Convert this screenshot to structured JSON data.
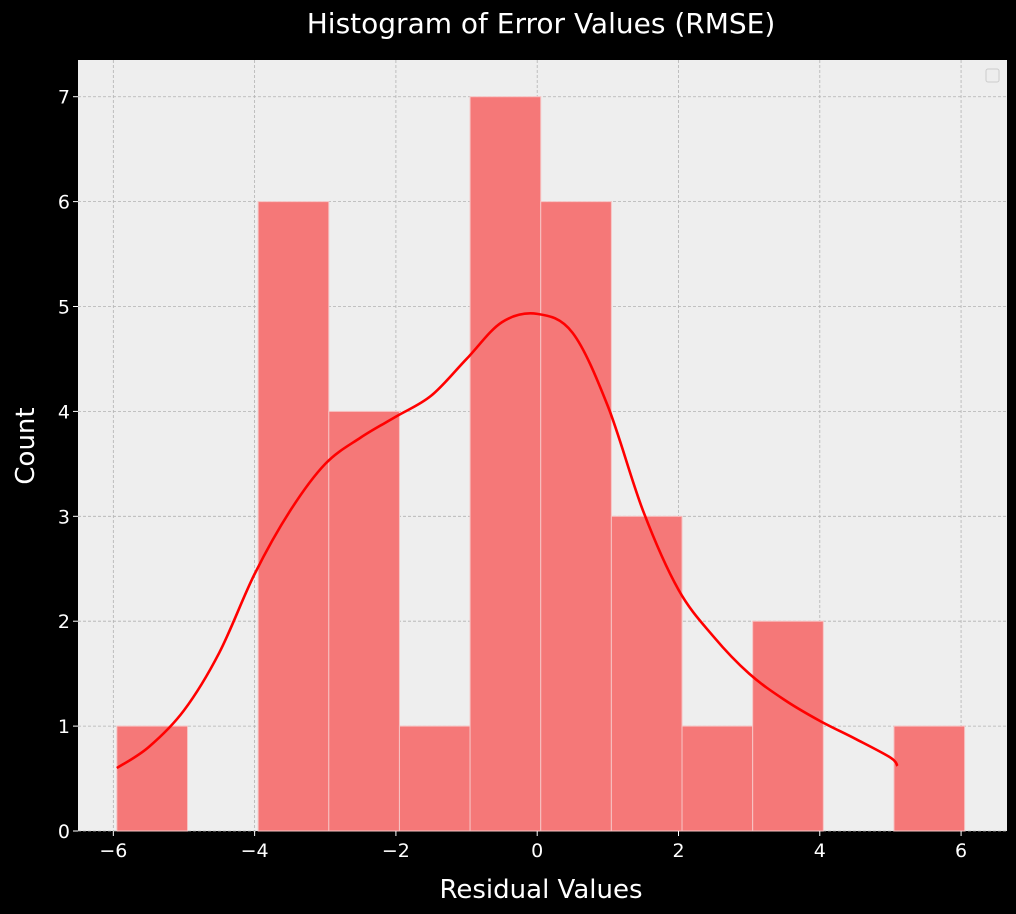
{
  "chart_data": {
    "type": "bar",
    "title": "Histogram of Error Values (RMSE)",
    "xlabel": "Residual Values",
    "ylabel": "Count",
    "xlim": [
      -6.5,
      6.65
    ],
    "ylim": [
      0,
      7.35
    ],
    "grid": true,
    "legend_placement": "top-right",
    "bins": [
      {
        "x0": -5.95,
        "x1": -4.95,
        "count": 1
      },
      {
        "x0": -4.95,
        "x1": -3.95,
        "count": 0
      },
      {
        "x0": -3.95,
        "x1": -2.95,
        "count": 6
      },
      {
        "x0": -2.95,
        "x1": -1.95,
        "count": 4
      },
      {
        "x0": -1.95,
        "x1": -0.95,
        "count": 1
      },
      {
        "x0": -0.95,
        "x1": 0.05,
        "count": 7
      },
      {
        "x0": 0.05,
        "x1": 1.05,
        "count": 6
      },
      {
        "x0": 1.05,
        "x1": 2.05,
        "count": 3
      },
      {
        "x0": 2.05,
        "x1": 3.05,
        "count": 1
      },
      {
        "x0": 3.05,
        "x1": 4.05,
        "count": 2
      },
      {
        "x0": 4.05,
        "x1": 5.05,
        "count": 0
      },
      {
        "x0": 5.05,
        "x1": 6.05,
        "count": 1
      }
    ],
    "kde": {
      "x": [
        -5.95,
        -5.5,
        -5.0,
        -4.5,
        -4.0,
        -3.5,
        -3.0,
        -2.5,
        -2.0,
        -1.5,
        -1.0,
        -0.5,
        0.0,
        0.5,
        1.0,
        1.5,
        2.0,
        2.5,
        3.0,
        3.5,
        4.0,
        4.5,
        5.0,
        5.1
      ],
      "y": [
        0.6,
        0.8,
        1.15,
        1.7,
        2.45,
        3.05,
        3.5,
        3.75,
        3.95,
        4.15,
        4.5,
        4.85,
        4.93,
        4.75,
        4.05,
        3.05,
        2.3,
        1.85,
        1.5,
        1.25,
        1.05,
        0.88,
        0.7,
        0.62
      ]
    },
    "x_ticks": [
      {
        "value": -6,
        "label": "−6"
      },
      {
        "value": -4,
        "label": "−4"
      },
      {
        "value": -2,
        "label": "−2"
      },
      {
        "value": 0,
        "label": "0"
      },
      {
        "value": 2,
        "label": "2"
      },
      {
        "value": 4,
        "label": "4"
      },
      {
        "value": 6,
        "label": "6"
      }
    ],
    "y_ticks": [
      {
        "value": 0,
        "label": "0"
      },
      {
        "value": 1,
        "label": "1"
      },
      {
        "value": 2,
        "label": "2"
      },
      {
        "value": 3,
        "label": "3"
      },
      {
        "value": 4,
        "label": "4"
      },
      {
        "value": 5,
        "label": "5"
      },
      {
        "value": 6,
        "label": "6"
      },
      {
        "value": 7,
        "label": "7"
      }
    ],
    "colors": {
      "figure_background": "#000000",
      "plot_background": "#eeeeee",
      "bar_fill": "#f57878",
      "bar_edge": "#f7c4c4",
      "kde_line": "#ff0000",
      "grid": "#b2b2b2",
      "text": "#ffffff"
    }
  }
}
